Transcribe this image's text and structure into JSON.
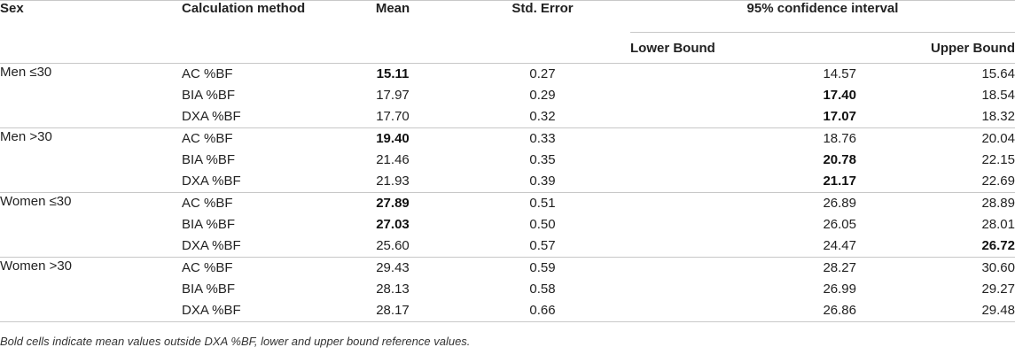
{
  "header": {
    "sex": "Sex",
    "method": "Calculation method",
    "mean": "Mean",
    "se": "Std. Error",
    "ci": "95% confidence interval",
    "lower": "Lower Bound",
    "upper": "Upper Bound"
  },
  "groups": [
    {
      "sex": "Men ≤30",
      "rows": [
        {
          "method": "AC %BF",
          "mean": "15.11",
          "se": "0.27",
          "lower": "14.57",
          "upper": "15.64",
          "bold": [
            "mean"
          ]
        },
        {
          "method": "BIA %BF",
          "mean": "17.97",
          "se": "0.29",
          "lower": "17.40",
          "upper": "18.54",
          "bold": [
            "lower"
          ]
        },
        {
          "method": "DXA %BF",
          "mean": "17.70",
          "se": "0.32",
          "lower": "17.07",
          "upper": "18.32",
          "bold": [
            "lower"
          ]
        }
      ]
    },
    {
      "sex": "Men >30",
      "rows": [
        {
          "method": "AC %BF",
          "mean": "19.40",
          "se": "0.33",
          "lower": "18.76",
          "upper": "20.04",
          "bold": [
            "mean"
          ]
        },
        {
          "method": "BIA %BF",
          "mean": "21.46",
          "se": "0.35",
          "lower": "20.78",
          "upper": "22.15",
          "bold": [
            "lower"
          ]
        },
        {
          "method": "DXA %BF",
          "mean": "21.93",
          "se": "0.39",
          "lower": "21.17",
          "upper": "22.69",
          "bold": [
            "lower"
          ]
        }
      ]
    },
    {
      "sex": "Women ≤30",
      "rows": [
        {
          "method": "AC %BF",
          "mean": "27.89",
          "se": "0.51",
          "lower": "26.89",
          "upper": "28.89",
          "bold": [
            "mean"
          ]
        },
        {
          "method": "BIA %BF",
          "mean": "27.03",
          "se": "0.50",
          "lower": "26.05",
          "upper": "28.01",
          "bold": [
            "mean"
          ]
        },
        {
          "method": "DXA %BF",
          "mean": "25.60",
          "se": "0.57",
          "lower": "24.47",
          "upper": "26.72",
          "bold": [
            "upper"
          ]
        }
      ]
    },
    {
      "sex": "Women >30",
      "rows": [
        {
          "method": "AC %BF",
          "mean": "29.43",
          "se": "0.59",
          "lower": "28.27",
          "upper": "30.60",
          "bold": []
        },
        {
          "method": "BIA %BF",
          "mean": "28.13",
          "se": "0.58",
          "lower": "26.99",
          "upper": "29.27",
          "bold": []
        },
        {
          "method": "DXA %BF",
          "mean": "28.17",
          "se": "0.66",
          "lower": "26.86",
          "upper": "29.48",
          "bold": []
        }
      ]
    }
  ],
  "footnote": "Bold cells indicate mean values outside DXA %BF, lower and upper bound reference values."
}
